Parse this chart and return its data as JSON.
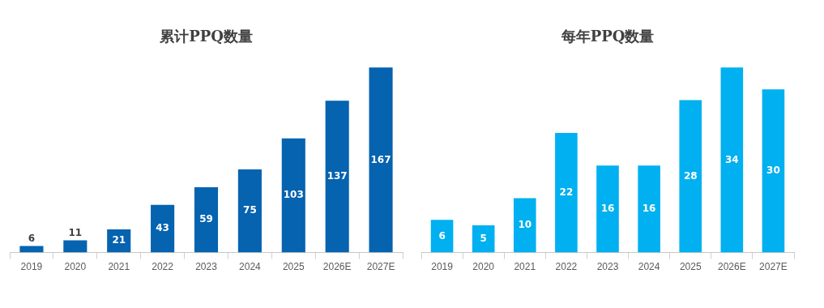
{
  "chart_data": [
    {
      "type": "bar",
      "title": "累计PPQ数量",
      "categories": [
        "2019",
        "2020",
        "2021",
        "2022",
        "2023",
        "2024",
        "2025",
        "2026E",
        "2027E"
      ],
      "values": [
        6,
        11,
        21,
        43,
        59,
        75,
        103,
        137,
        167
      ],
      "color": "#0563b0",
      "tick_labels": "x",
      "data_labels": true,
      "grid": false,
      "legend": false
    },
    {
      "type": "bar",
      "title": "每年PPQ数量",
      "categories": [
        "2019",
        "2020",
        "2021",
        "2022",
        "2023",
        "2024",
        "2025",
        "2026E",
        "2027E"
      ],
      "values": [
        6,
        5,
        10,
        22,
        16,
        16,
        28,
        34,
        30
      ],
      "color": "#00b0f0",
      "tick_labels": "x",
      "data_labels": true,
      "grid": false,
      "legend": false
    }
  ]
}
